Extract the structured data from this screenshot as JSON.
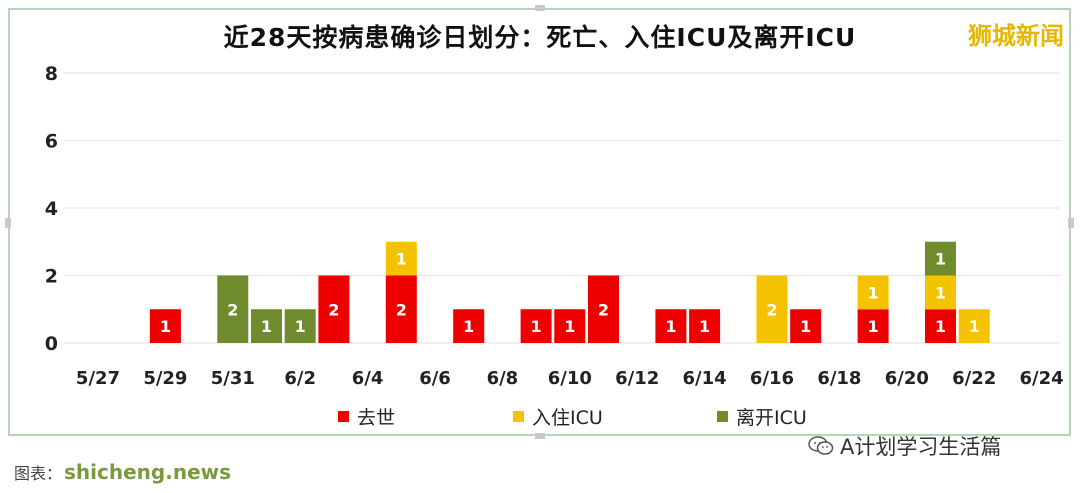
{
  "brand": "狮城新闻",
  "watermark": "A计划学习生活篇",
  "source_prefix": "图表：",
  "source_site": "shicheng.news",
  "chart_data": {
    "type": "bar",
    "stacked": true,
    "title": "近28天按病患确诊日划分：死亡、入住ICU及离开ICU",
    "xlabel": "",
    "ylabel": "",
    "ylim": [
      0,
      8
    ],
    "yticks": [
      0,
      2,
      4,
      6,
      8
    ],
    "grid": true,
    "legend_position": "bottom",
    "categories": [
      "5/27",
      "5/28",
      "5/29",
      "5/30",
      "5/31",
      "6/1",
      "6/2",
      "6/3",
      "6/4",
      "6/5",
      "6/6",
      "6/7",
      "6/8",
      "6/9",
      "6/10",
      "6/11",
      "6/12",
      "6/13",
      "6/14",
      "6/15",
      "6/16",
      "6/17",
      "6/18",
      "6/19",
      "6/20",
      "6/21",
      "6/22",
      "6/23",
      "6/24"
    ],
    "tick_labels": [
      "5/27",
      "5/29",
      "5/31",
      "6/2",
      "6/4",
      "6/6",
      "6/8",
      "6/10",
      "6/12",
      "6/14",
      "6/16",
      "6/18",
      "6/20",
      "6/22",
      "6/24"
    ],
    "series": [
      {
        "name": "去世",
        "color": "#ee0000",
        "values": [
          0,
          0,
          1,
          0,
          0,
          0,
          0,
          2,
          0,
          2,
          0,
          1,
          0,
          1,
          1,
          2,
          0,
          1,
          1,
          0,
          0,
          1,
          0,
          1,
          0,
          1,
          0,
          0,
          0
        ]
      },
      {
        "name": "入住ICU",
        "color": "#f5c200",
        "values": [
          0,
          0,
          0,
          0,
          0,
          0,
          0,
          0,
          0,
          1,
          0,
          0,
          0,
          0,
          0,
          0,
          0,
          0,
          0,
          0,
          2,
          0,
          0,
          1,
          0,
          1,
          1,
          0,
          0
        ]
      },
      {
        "name": "离开ICU",
        "color": "#6e8b2e",
        "values": [
          0,
          0,
          0,
          0,
          2,
          1,
          1,
          0,
          0,
          0,
          0,
          0,
          0,
          0,
          0,
          0,
          0,
          0,
          0,
          0,
          0,
          0,
          0,
          0,
          0,
          1,
          0,
          0,
          0
        ]
      }
    ]
  }
}
